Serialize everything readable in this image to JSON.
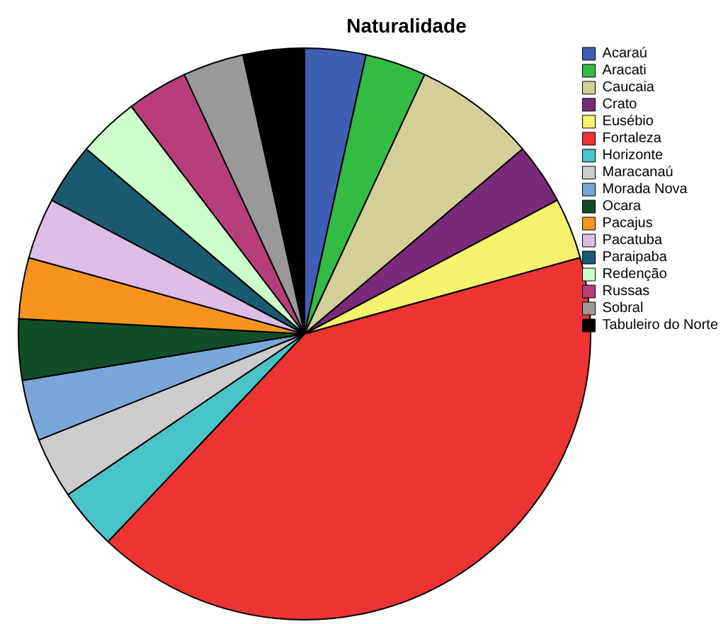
{
  "chart_data": {
    "type": "pie",
    "title": "Naturalidade",
    "categories": [
      "Acaraú",
      "Aracati",
      "Caucaia",
      "Crato",
      "Eusébio",
      "Fortaleza",
      "Horizonte",
      "Maracanaú",
      "Morada Nova",
      "Ocara",
      "Pacajus",
      "Pacatuba",
      "Paraipaba",
      "Redenção",
      "Russas",
      "Sobral",
      "Tabuleiro do Norte"
    ],
    "values": [
      3.45,
      3.45,
      6.9,
      3.45,
      3.45,
      41.35,
      3.45,
      3.45,
      3.45,
      3.45,
      3.45,
      3.45,
      3.45,
      3.45,
      3.45,
      3.45,
      3.45
    ],
    "colors": [
      "#3f5fb5",
      "#33bb44",
      "#d4cf98",
      "#7a2a7a",
      "#f7f26d",
      "#ee3333",
      "#48c3c8",
      "#cccccc",
      "#79a6d8",
      "#114d28",
      "#f7941d",
      "#dcbde8",
      "#1a5a70",
      "#ccffcc",
      "#b83e7a",
      "#999999",
      "#000000"
    ],
    "legend": "top right"
  }
}
